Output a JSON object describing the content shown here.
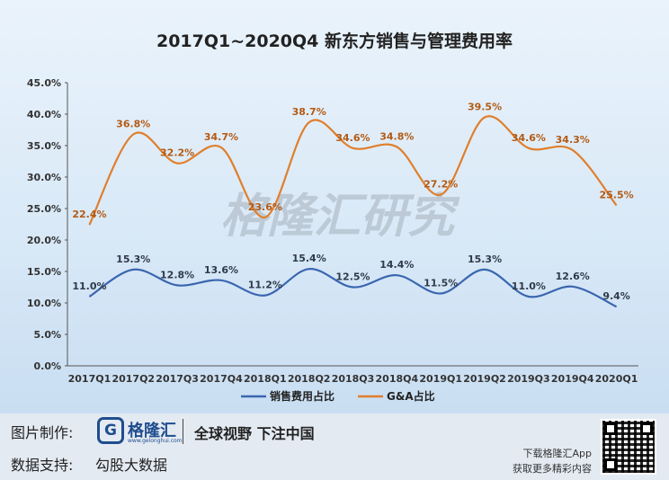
{
  "chart_data": {
    "type": "line",
    "title": "2017Q1~2020Q4 新东方销售与管理费用率",
    "categories": [
      "2017Q1",
      "2017Q2",
      "2017Q3",
      "2017Q4",
      "2018Q1",
      "2018Q2",
      "2018Q3",
      "2018Q4",
      "2019Q1",
      "2019Q2",
      "2019Q3",
      "2019Q4",
      "2020Q1"
    ],
    "y_ticks": [
      "45.0%",
      "40.0%",
      "35.0%",
      "30.0%",
      "25.0%",
      "20.0%",
      "15.0%",
      "10.0%",
      "5.0%",
      "0.0%"
    ],
    "ylim": [
      0,
      45
    ],
    "grid": false,
    "legend_position": "bottom",
    "series": [
      {
        "name": "销售费用占比",
        "color": "#3a66b0",
        "values": [
          11.0,
          15.3,
          12.8,
          13.6,
          11.2,
          15.4,
          12.5,
          14.4,
          11.5,
          15.3,
          11.0,
          12.6,
          9.4
        ],
        "labels": [
          "11.0%",
          "15.3%",
          "12.8%",
          "13.6%",
          "11.2%",
          "15.4%",
          "12.5%",
          "14.4%",
          "11.5%",
          "15.3%",
          "11.0%",
          "12.6%",
          "9.4%"
        ]
      },
      {
        "name": "G&A占比",
        "color": "#e07f2c",
        "values": [
          22.4,
          36.8,
          32.2,
          34.7,
          23.6,
          38.7,
          34.6,
          34.8,
          27.2,
          39.5,
          34.6,
          34.3,
          25.5
        ],
        "labels": [
          "22.4%",
          "36.8%",
          "32.2%",
          "34.7%",
          "23.6%",
          "38.7%",
          "34.6%",
          "34.8%",
          "27.2%",
          "39.5%",
          "34.6%",
          "34.3%",
          "25.5%"
        ]
      }
    ]
  },
  "watermark": "格隆汇研究",
  "footer": {
    "made_by_label": "图片制作:",
    "logo_char": "G",
    "logo_name": "格隆汇",
    "logo_sub": "www.gelonghui.com",
    "slogan": "全球视野 下注中国",
    "data_label": "数据支持:",
    "data_source": "勾股大数据",
    "download_text": "下载格隆汇App",
    "more_text": "获取更多精彩内容"
  }
}
